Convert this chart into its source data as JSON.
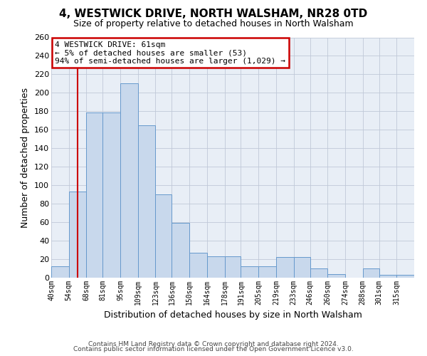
{
  "title": "4, WESTWICK DRIVE, NORTH WALSHAM, NR28 0TD",
  "subtitle": "Size of property relative to detached houses in North Walsham",
  "xlabel": "Distribution of detached houses by size in North Walsham",
  "ylabel": "Number of detached properties",
  "bin_labels": [
    "40sqm",
    "54sqm",
    "68sqm",
    "81sqm",
    "95sqm",
    "109sqm",
    "123sqm",
    "136sqm",
    "150sqm",
    "164sqm",
    "178sqm",
    "191sqm",
    "205sqm",
    "219sqm",
    "233sqm",
    "246sqm",
    "260sqm",
    "274sqm",
    "288sqm",
    "301sqm",
    "315sqm"
  ],
  "bin_edges": [
    40,
    54,
    68,
    81,
    95,
    109,
    123,
    136,
    150,
    164,
    178,
    191,
    205,
    219,
    233,
    246,
    260,
    274,
    288,
    301,
    315
  ],
  "bar_heights": [
    12,
    93,
    179,
    179,
    210,
    165,
    90,
    59,
    27,
    23,
    23,
    12,
    12,
    22,
    22,
    10,
    4,
    0,
    10,
    3,
    3
  ],
  "bar_color": "#c8d8ec",
  "bar_edge_color": "#6699cc",
  "property_line_x": 61,
  "property_line_color": "#cc0000",
  "annotation_title": "4 WESTWICK DRIVE: 61sqm",
  "annotation_line1": "← 5% of detached houses are smaller (53)",
  "annotation_line2": "94% of semi-detached houses are larger (1,029) →",
  "annotation_box_color": "#cc0000",
  "ylim": [
    0,
    260
  ],
  "yticks": [
    0,
    20,
    40,
    60,
    80,
    100,
    120,
    140,
    160,
    180,
    200,
    220,
    240,
    260
  ],
  "grid_color": "#c0c8d8",
  "bg_color": "#e8eef6",
  "footer_line1": "Contains HM Land Registry data © Crown copyright and database right 2024.",
  "footer_line2": "Contains public sector information licensed under the Open Government Licence v3.0."
}
